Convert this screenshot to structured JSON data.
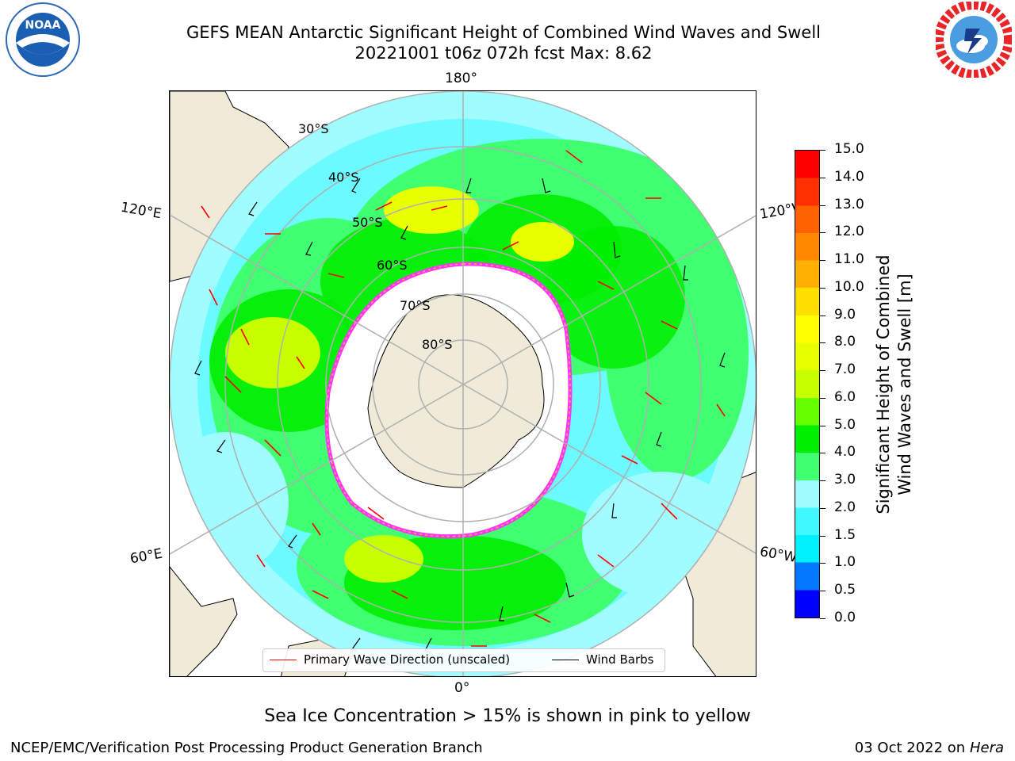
{
  "header": {
    "title_line1": "GEFS MEAN Antarctic Significant Height of Combined Wind Waves and Swell",
    "title_line2": "20221001 t06z 072h fcst   Max: 8.62"
  },
  "logos": {
    "left": "noaa-logo",
    "right": "nws-logo",
    "left_text": "NOAA"
  },
  "map": {
    "projection": "south-polar-stereographic",
    "longitude_labels": {
      "top": "180°",
      "bottom": "0°",
      "upper_left": "120°E",
      "lower_left": "60°E",
      "upper_right": "120°W",
      "lower_right": "60°W"
    },
    "latitude_labels": [
      "30°S",
      "40°S",
      "50°S",
      "60°S",
      "70°S",
      "80°S"
    ],
    "colors": {
      "land": "#efebd8",
      "ice_edge": "#ff33ff",
      "ice_fringe": "#ffb03a",
      "wind_barb": "#000000",
      "wave_arrow": "#ff0000",
      "grid": "#b0b0b0"
    }
  },
  "legend": {
    "items": [
      {
        "label": "Primary Wave Direction (unscaled)",
        "color": "#ff0000"
      },
      {
        "label": "Wind Barbs",
        "color": "#000000"
      }
    ]
  },
  "colorbar": {
    "label_line1": "Significant Height of Combined",
    "label_line2": "Wind Waves and Swell [m]",
    "ticks": [
      "0.0",
      "0.5",
      "1.0",
      "1.5",
      "2.0",
      "3.0",
      "4.0",
      "5.0",
      "6.0",
      "7.0",
      "8.0",
      "9.0",
      "10.0",
      "11.0",
      "12.0",
      "13.0",
      "14.0",
      "15.0"
    ],
    "colors": [
      "#0000ff",
      "#0078ff",
      "#00f0ff",
      "#40f8ff",
      "#a0fcff",
      "#40ff70",
      "#00ee00",
      "#66ff00",
      "#c8ff00",
      "#e8ff00",
      "#ffff00",
      "#ffe000",
      "#ffb000",
      "#ff8800",
      "#ff6000",
      "#ff3000",
      "#ff0000"
    ]
  },
  "chart_data": {
    "type": "heatmap",
    "variable": "Significant Height of Combined Wind Waves and Swell",
    "units": "m",
    "run": "20221001 t06z",
    "forecast_hour": "072h",
    "max": 8.62,
    "scale_range": [
      0,
      15
    ]
  },
  "notes": {
    "sea_ice": "Sea Ice Concentration > 15% is shown in pink to yellow"
  },
  "footer": {
    "left": "NCEP/EMC/Verification Post Processing Product Generation Branch",
    "date": "03 Oct 2022 on ",
    "host": "Hera"
  }
}
